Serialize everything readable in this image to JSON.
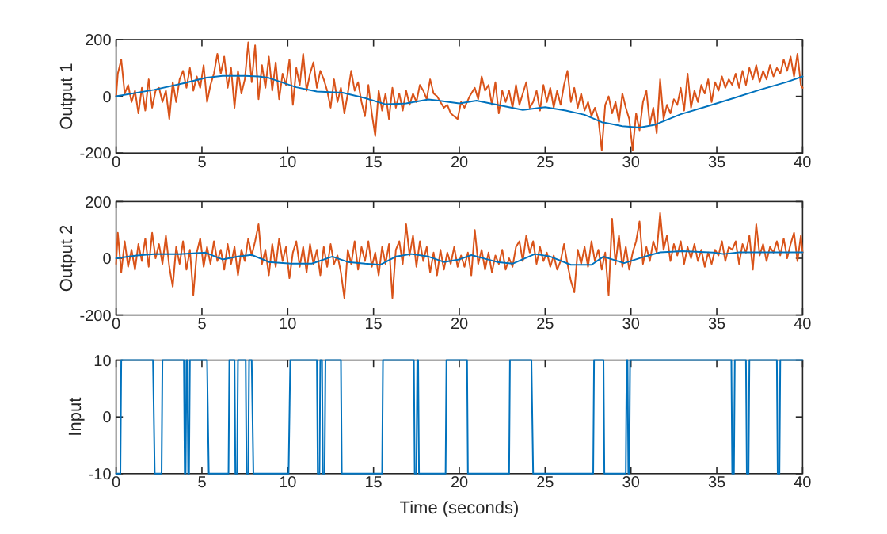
{
  "chart_data": [
    {
      "type": "line",
      "ylabel": "Output 1",
      "xlim": [
        0,
        40
      ],
      "xticks": [
        0,
        5,
        10,
        15,
        20,
        25,
        30,
        35,
        40
      ],
      "ylim": [
        -200,
        200
      ],
      "yticks": [
        -200,
        0,
        200
      ],
      "series": [
        {
          "color": "#d95319",
          "x": [
            0,
            0.1,
            0.3,
            0.5,
            0.7,
            0.9,
            1.1,
            1.3,
            1.5,
            1.7,
            1.9,
            2.1,
            2.3,
            2.5,
            2.7,
            2.9,
            3.1,
            3.3,
            3.5,
            3.7,
            3.9,
            4.1,
            4.3,
            4.5,
            4.7,
            4.9,
            5.1,
            5.3,
            5.5,
            5.7,
            5.9,
            6.1,
            6.3,
            6.5,
            6.7,
            6.9,
            7.1,
            7.3,
            7.5,
            7.7,
            7.9,
            8.1,
            8.3,
            8.5,
            8.7,
            8.9,
            9.1,
            9.3,
            9.5,
            9.7,
            9.9,
            10.1,
            10.3,
            10.5,
            10.7,
            10.9,
            11.1,
            11.3,
            11.5,
            11.7,
            11.9,
            12.1,
            12.3,
            12.5,
            12.7,
            12.9,
            13.1,
            13.3,
            13.5,
            13.7,
            13.9,
            14.1,
            14.3,
            14.5,
            14.7,
            14.9,
            15.1,
            15.3,
            15.5,
            15.7,
            15.9,
            16.1,
            16.3,
            16.5,
            16.7,
            16.9,
            17.1,
            17.3,
            17.5,
            17.7,
            17.9,
            18.1,
            18.3,
            18.5,
            18.7,
            18.9,
            19.1,
            19.3,
            19.5,
            19.7,
            19.9,
            20.1,
            20.3,
            20.6,
            20.9,
            21.1,
            21.3,
            21.5,
            21.7,
            21.9,
            22.1,
            22.3,
            22.5,
            22.7,
            22.9,
            23.1,
            23.3,
            23.5,
            23.7,
            23.9,
            24.1,
            24.3,
            24.5,
            24.7,
            24.9,
            25.1,
            25.3,
            25.5,
            25.7,
            25.9,
            26.1,
            26.3,
            26.5,
            26.7,
            26.9,
            27.1,
            27.3,
            27.5,
            27.7,
            27.9,
            28.1,
            28.3,
            28.5,
            28.7,
            28.9,
            29.1,
            29.3,
            29.5,
            29.7,
            29.9,
            30.1,
            30.3,
            30.5,
            30.7,
            30.9,
            31.1,
            31.3,
            31.5,
            31.7,
            31.9,
            32.1,
            32.3,
            32.5,
            32.7,
            32.9,
            33.1,
            33.3,
            33.5,
            33.7,
            33.9,
            34.1,
            34.3,
            34.5,
            34.7,
            34.9,
            35.1,
            35.3,
            35.5,
            35.7,
            35.9,
            36.1,
            36.3,
            36.5,
            36.7,
            36.9,
            37.1,
            37.3,
            37.5,
            37.7,
            37.9,
            38.1,
            38.3,
            38.5,
            38.7,
            38.9,
            39.1,
            39.3,
            39.5,
            39.7,
            39.9,
            40
          ],
          "values": [
            0,
            80,
            130,
            10,
            40,
            -20,
            20,
            -60,
            30,
            -50,
            60,
            -40,
            20,
            30,
            -20,
            20,
            -80,
            50,
            -20,
            60,
            90,
            30,
            100,
            20,
            70,
            30,
            110,
            -20,
            40,
            80,
            150,
            80,
            140,
            30,
            100,
            -40,
            90,
            10,
            60,
            190,
            50,
            180,
            -10,
            110,
            30,
            140,
            20,
            120,
            -10,
            80,
            40,
            130,
            -30,
            100,
            40,
            150,
            20,
            80,
            120,
            30,
            90,
            60,
            20,
            -40,
            60,
            -20,
            30,
            -60,
            10,
            90,
            20,
            50,
            -20,
            -70,
            40,
            -60,
            -140,
            20,
            -50,
            10,
            -80,
            30,
            -40,
            10,
            -50,
            20,
            -30,
            10,
            -20,
            40,
            20,
            -10,
            60,
            10,
            0,
            -20,
            -40,
            -30,
            -60,
            -70,
            -80,
            -20,
            -40,
            0,
            30,
            -10,
            70,
            20,
            40,
            -30,
            50,
            -60,
            20,
            -20,
            20,
            -40,
            40,
            -30,
            10,
            50,
            -40,
            -20,
            20,
            -50,
            40,
            -20,
            30,
            -40,
            20,
            -30,
            40,
            90,
            -20,
            30,
            -40,
            10,
            -50,
            -20,
            -70,
            -40,
            -80,
            -190,
            -30,
            0,
            -60,
            -20,
            -90,
            10,
            -40,
            -80,
            -190,
            -60,
            -120,
            -20,
            20,
            -100,
            -40,
            -130,
            60,
            -80,
            -30,
            -60,
            -10,
            -30,
            30,
            -50,
            80,
            -40,
            20,
            -20,
            40,
            10,
            60,
            -20,
            50,
            20,
            70,
            30,
            60,
            40,
            80,
            30,
            90,
            40,
            100,
            60,
            110,
            50,
            90,
            60,
            110,
            70,
            100,
            80,
            130,
            90,
            140,
            70,
            150,
            40,
            30
          ]
        },
        {
          "color": "#0072bd",
          "x": [
            0,
            2.2,
            4,
            5.2,
            6.2,
            7.5,
            8.3,
            8.9,
            10.5,
            11.7,
            13.2,
            14.5,
            15.7,
            16.9,
            18.2,
            18.8,
            20,
            21,
            22.2,
            23.7,
            25,
            26.2,
            27.3,
            28.3,
            29.5,
            30.5,
            31.4,
            32.9,
            34.5,
            36,
            37.5,
            39.1,
            40
          ],
          "values": [
            0,
            23,
            47,
            65,
            72,
            72,
            70,
            65,
            32,
            17,
            13,
            -6,
            -28,
            -25,
            -11,
            -15,
            -25,
            -15,
            -30,
            -48,
            -38,
            -50,
            -65,
            -91,
            -105,
            -110,
            -100,
            -63,
            -34,
            -6,
            23,
            51,
            70
          ]
        }
      ]
    },
    {
      "type": "line",
      "ylabel": "Output 2",
      "xlim": [
        0,
        40
      ],
      "xticks": [
        0,
        5,
        10,
        15,
        20,
        25,
        30,
        35,
        40
      ],
      "ylim": [
        -200,
        200
      ],
      "yticks": [
        -200,
        0,
        200
      ],
      "series": [
        {
          "color": "#d95319",
          "x": [
            0,
            0.1,
            0.3,
            0.5,
            0.7,
            0.9,
            1.1,
            1.3,
            1.5,
            1.7,
            1.9,
            2.1,
            2.3,
            2.5,
            2.7,
            2.9,
            3.1,
            3.3,
            3.5,
            3.7,
            3.9,
            4.1,
            4.3,
            4.5,
            4.7,
            4.9,
            5.1,
            5.3,
            5.5,
            5.7,
            5.9,
            6.1,
            6.3,
            6.5,
            6.7,
            6.9,
            7.1,
            7.3,
            7.5,
            7.7,
            7.9,
            8.1,
            8.3,
            8.5,
            8.7,
            8.9,
            9.1,
            9.3,
            9.5,
            9.7,
            9.9,
            10.1,
            10.3,
            10.5,
            10.7,
            10.9,
            11.1,
            11.3,
            11.5,
            11.7,
            11.9,
            12.1,
            12.3,
            12.5,
            12.7,
            12.9,
            13.1,
            13.3,
            13.5,
            13.7,
            13.9,
            14.1,
            14.3,
            14.5,
            14.7,
            14.9,
            15.1,
            15.3,
            15.5,
            15.7,
            15.9,
            16.1,
            16.3,
            16.5,
            16.7,
            16.9,
            17.1,
            17.3,
            17.5,
            17.7,
            17.9,
            18.1,
            18.3,
            18.5,
            18.7,
            18.9,
            19.1,
            19.3,
            19.5,
            19.7,
            19.9,
            20.1,
            20.3,
            20.5,
            20.7,
            20.9,
            21.1,
            21.3,
            21.5,
            21.7,
            21.9,
            22.1,
            22.3,
            22.5,
            22.7,
            22.9,
            23.1,
            23.3,
            23.5,
            23.7,
            23.9,
            24.1,
            24.3,
            24.5,
            24.7,
            24.9,
            25.1,
            25.3,
            25.5,
            25.7,
            25.9,
            26.1,
            26.3,
            26.5,
            26.7,
            26.9,
            27.1,
            27.3,
            27.5,
            27.7,
            27.9,
            28.1,
            28.3,
            28.5,
            28.7,
            28.9,
            29.1,
            29.3,
            29.5,
            29.7,
            29.9,
            30.1,
            30.3,
            30.5,
            30.7,
            30.9,
            31.1,
            31.3,
            31.5,
            31.7,
            31.9,
            32.1,
            32.3,
            32.5,
            32.7,
            32.9,
            33.1,
            33.3,
            33.5,
            33.7,
            33.9,
            34.1,
            34.3,
            34.5,
            34.7,
            34.9,
            35.1,
            35.3,
            35.5,
            35.7,
            35.9,
            36.1,
            36.3,
            36.5,
            36.7,
            36.9,
            37.1,
            37.3,
            37.5,
            37.7,
            37.9,
            38.1,
            38.3,
            38.5,
            38.7,
            38.9,
            39.1,
            39.3,
            39.5,
            39.7,
            39.9,
            40
          ],
          "values": [
            -20,
            90,
            -50,
            60,
            -30,
            30,
            -40,
            50,
            -10,
            70,
            -30,
            90,
            0,
            50,
            -20,
            80,
            -30,
            -100,
            40,
            -20,
            60,
            -40,
            30,
            -130,
            20,
            70,
            -30,
            40,
            -20,
            60,
            -10,
            30,
            -40,
            50,
            -20,
            40,
            -60,
            30,
            -10,
            70,
            10,
            60,
            120,
            -20,
            30,
            -60,
            50,
            -30,
            70,
            -10,
            40,
            -70,
            20,
            60,
            -30,
            40,
            -50,
            50,
            -20,
            30,
            -60,
            40,
            -30,
            50,
            -20,
            10,
            -50,
            -140,
            30,
            -20,
            60,
            -40,
            40,
            -10,
            60,
            -30,
            20,
            -60,
            40,
            -20,
            50,
            -140,
            30,
            60,
            -20,
            120,
            10,
            80,
            -30,
            60,
            -10,
            40,
            -50,
            20,
            -60,
            30,
            -40,
            20,
            -20,
            40,
            -30,
            10,
            -30,
            20,
            -60,
            100,
            -20,
            30,
            -40,
            20,
            -50,
            10,
            -20,
            30,
            -40,
            0,
            -30,
            40,
            60,
            -10,
            80,
            20,
            60,
            -20,
            40,
            -10,
            20,
            -30,
            10,
            -40,
            -10,
            50,
            -20,
            -80,
            -120,
            30,
            -20,
            40,
            -30,
            60,
            -10,
            30,
            -40,
            20,
            -130,
            140,
            -20,
            80,
            -30,
            40,
            -40,
            20,
            60,
            130,
            -20,
            40,
            -10,
            60,
            20,
            160,
            30,
            80,
            -10,
            50,
            10,
            60,
            -20,
            40,
            0,
            50,
            -10,
            30,
            -30,
            20,
            -20,
            30,
            10,
            60,
            -10,
            40,
            30,
            60,
            -20,
            50,
            20,
            80,
            -40,
            120,
            10,
            50,
            -10,
            40,
            20,
            60,
            10,
            70,
            0,
            50,
            90,
            -10,
            80,
            20
          ]
        },
        {
          "color": "#0072bd",
          "x": [
            0,
            1.2,
            2.2,
            3.7,
            5.2,
            6.2,
            7.1,
            7.9,
            8.9,
            10.2,
            11.4,
            12.6,
            13.5,
            14.5,
            15.4,
            16.3,
            17.2,
            18.2,
            19.1,
            20,
            20.7,
            22.2,
            23.1,
            24.4,
            25.3,
            26.5,
            27.7,
            28.4,
            29.6,
            30.8,
            31.7,
            33,
            34.8,
            35.4,
            36.3,
            38.2,
            40
          ],
          "values": [
            0,
            10,
            15,
            15,
            20,
            -4,
            6,
            12,
            -13,
            -19,
            -19,
            6,
            -13,
            -19,
            -23,
            6,
            15,
            6,
            -13,
            -4,
            11,
            -13,
            -19,
            15,
            6,
            -23,
            -23,
            6,
            -17,
            6,
            21,
            25,
            20,
            15,
            21,
            21,
            21
          ]
        }
      ]
    },
    {
      "type": "line",
      "ylabel": "Input",
      "xlabel": "Time (seconds)",
      "xlim": [
        0,
        40
      ],
      "xticks": [
        0,
        5,
        10,
        15,
        20,
        25,
        30,
        35,
        40
      ],
      "ylim": [
        -10,
        10
      ],
      "yticks": [
        -10,
        0,
        10
      ],
      "series": [
        {
          "color": "#0072bd",
          "x": [
            0,
            0.25,
            0.3,
            2.15,
            2.25,
            2.65,
            2.7,
            3.95,
            4.0,
            4.05,
            4.1,
            4.15,
            4.2,
            4.25,
            4.3,
            5.3,
            5.4,
            6.55,
            6.6,
            6.9,
            6.95,
            7.05,
            7.1,
            7.55,
            7.6,
            7.7,
            7.75,
            7.9,
            8.0,
            10.05,
            10.15,
            11.7,
            11.75,
            11.85,
            11.9,
            12.0,
            12.05,
            12.15,
            12.2,
            13.1,
            13.15,
            15.5,
            15.55,
            17.35,
            17.4,
            17.5,
            17.55,
            17.6,
            17.65,
            19.2,
            19.25,
            20.45,
            20.5,
            22.9,
            22.95,
            24.2,
            24.3,
            27.8,
            27.85,
            28.4,
            28.45,
            29.7,
            29.75,
            29.8,
            29.85,
            29.9,
            29.95,
            35.85,
            35.9,
            36.0,
            36.05,
            36.7,
            36.75,
            36.85,
            36.9,
            38.5,
            38.55,
            38.65,
            38.7,
            40
          ],
          "values": [
            -10,
            -10,
            10,
            10,
            -10,
            -10,
            10,
            10,
            -10,
            -10,
            10,
            10,
            -10,
            -10,
            10,
            10,
            -10,
            -10,
            10,
            10,
            -10,
            -10,
            10,
            10,
            -10,
            -10,
            10,
            10,
            -10,
            -10,
            10,
            10,
            -10,
            -10,
            10,
            10,
            -10,
            -10,
            10,
            10,
            -10,
            -10,
            10,
            10,
            -10,
            -10,
            10,
            10,
            -10,
            -10,
            10,
            10,
            -10,
            -10,
            10,
            10,
            -10,
            -10,
            10,
            10,
            -10,
            -10,
            10,
            10,
            -10,
            -10,
            10,
            10,
            -10,
            -10,
            10,
            10,
            -10,
            -10,
            10,
            10,
            -10,
            -10,
            10,
            10
          ]
        }
      ]
    }
  ]
}
